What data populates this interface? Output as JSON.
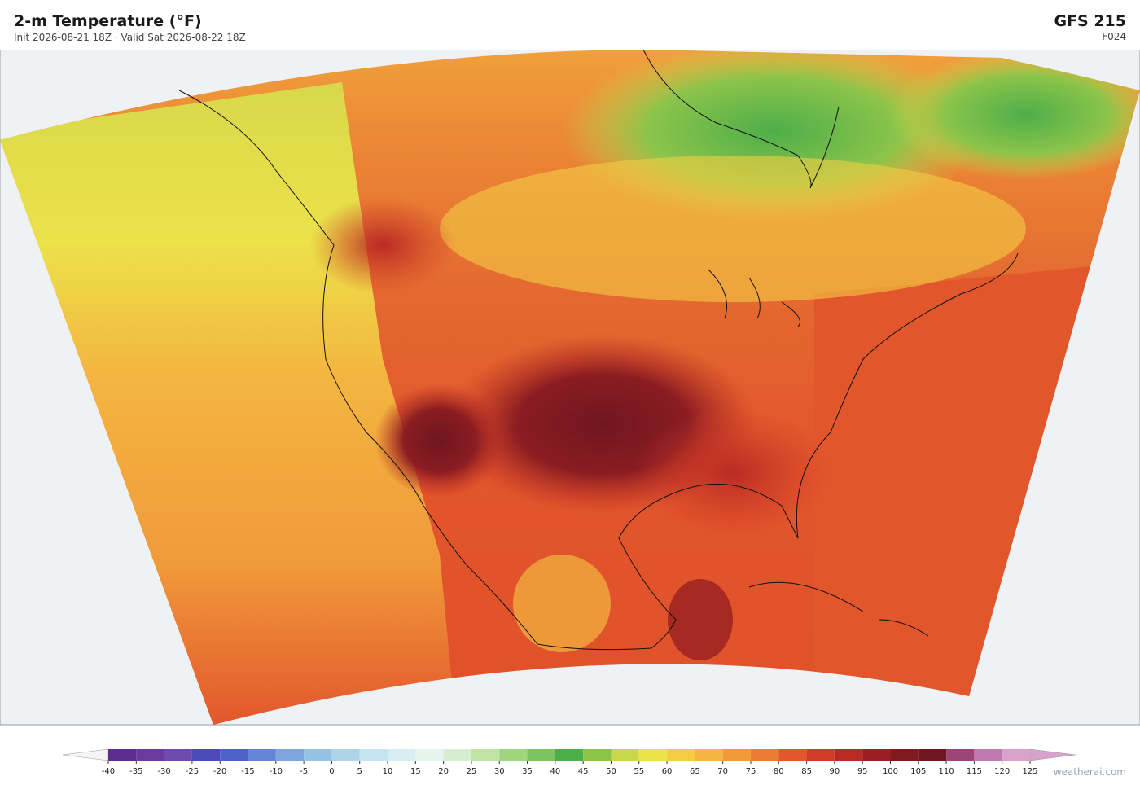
{
  "header": {
    "title": "2-m Temperature  (°F)",
    "subtitle": "Init 2026-08-21 18Z   ·   Valid Sat 2026-08-22 18Z",
    "model": "GFS  215",
    "forecast_hour": "F024"
  },
  "colorbar": {
    "ticks": [
      -40,
      -35,
      -30,
      -25,
      -20,
      -15,
      -10,
      -5,
      0,
      5,
      10,
      15,
      20,
      25,
      30,
      35,
      40,
      45,
      50,
      55,
      60,
      65,
      70,
      75,
      80,
      85,
      90,
      95,
      100,
      105,
      110,
      115,
      120,
      125
    ],
    "colors": [
      "#5b2d8e",
      "#6a3a9c",
      "#6f4bb0",
      "#4b4ab8",
      "#4e62c8",
      "#6385d4",
      "#7ea4dc",
      "#94c2e4",
      "#aed4ea",
      "#c4e4f0",
      "#d8eef2",
      "#e6f4ee",
      "#d6edd0",
      "#bfe4a4",
      "#9fd57c",
      "#7cc460",
      "#4eae4a",
      "#8cc44a",
      "#c8d84a",
      "#ece24a",
      "#f4cd44",
      "#f4b640",
      "#f09a3a",
      "#ec7c34",
      "#e2562c",
      "#d03c28",
      "#b82a24",
      "#9a1e22",
      "#801a20",
      "#701620",
      "#9a4478",
      "#c07ab0",
      "#d8a2cc"
    ],
    "under_color": "#f4f4f4",
    "over_color": "#d8a2cc"
  },
  "watermark": "weatherai.com"
}
